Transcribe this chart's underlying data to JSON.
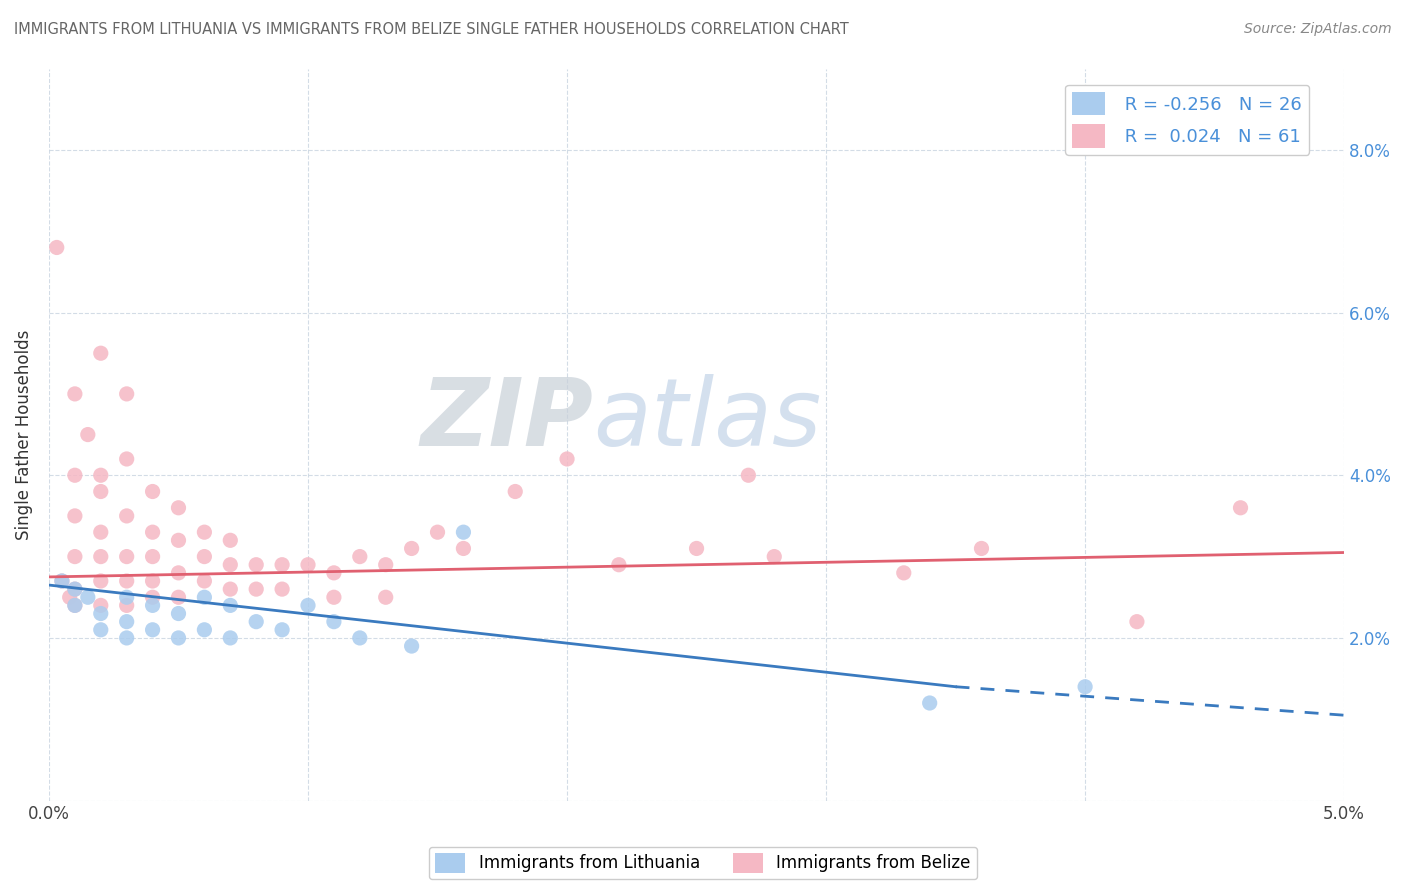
{
  "title": "IMMIGRANTS FROM LITHUANIA VS IMMIGRANTS FROM BELIZE SINGLE FATHER HOUSEHOLDS CORRELATION CHART",
  "source": "Source: ZipAtlas.com",
  "ylabel": "Single Father Households",
  "legend_labels": [
    "Immigrants from Lithuania",
    "Immigrants from Belize"
  ],
  "watermark_zip": "ZIP",
  "watermark_atlas": "atlas",
  "R_lithuania": -0.256,
  "N_lithuania": 26,
  "R_belize": 0.024,
  "N_belize": 61,
  "xlim": [
    0.0,
    0.05
  ],
  "ylim": [
    0.0,
    0.09
  ],
  "xtick_positions": [
    0.0,
    0.01,
    0.02,
    0.03,
    0.04,
    0.05
  ],
  "ytick_positions": [
    0.0,
    0.02,
    0.04,
    0.06,
    0.08
  ],
  "xticklabels": [
    "0.0%",
    "",
    "",
    "",
    "",
    "5.0%"
  ],
  "yticklabels_right": [
    "",
    "2.0%",
    "4.0%",
    "6.0%",
    "8.0%"
  ],
  "color_lithuania": "#aaccee",
  "color_belize": "#f5b8c4",
  "trendline_color_lithuania": "#3a7abf",
  "trendline_color_belize": "#e06070",
  "lithuania_scatter_x": [
    0.0005,
    0.001,
    0.001,
    0.0015,
    0.002,
    0.002,
    0.003,
    0.003,
    0.003,
    0.004,
    0.004,
    0.005,
    0.005,
    0.006,
    0.006,
    0.007,
    0.007,
    0.008,
    0.009,
    0.01,
    0.011,
    0.012,
    0.014,
    0.016,
    0.034,
    0.04
  ],
  "lithuania_scatter_y": [
    0.027,
    0.026,
    0.024,
    0.025,
    0.023,
    0.021,
    0.025,
    0.022,
    0.02,
    0.024,
    0.021,
    0.023,
    0.02,
    0.025,
    0.021,
    0.024,
    0.02,
    0.022,
    0.021,
    0.024,
    0.022,
    0.02,
    0.019,
    0.033,
    0.012,
    0.014
  ],
  "belize_scatter_x": [
    0.0003,
    0.0005,
    0.0008,
    0.001,
    0.001,
    0.001,
    0.001,
    0.001,
    0.001,
    0.0015,
    0.002,
    0.002,
    0.002,
    0.002,
    0.002,
    0.002,
    0.002,
    0.003,
    0.003,
    0.003,
    0.003,
    0.003,
    0.003,
    0.004,
    0.004,
    0.004,
    0.004,
    0.004,
    0.005,
    0.005,
    0.005,
    0.005,
    0.006,
    0.006,
    0.006,
    0.007,
    0.007,
    0.007,
    0.008,
    0.008,
    0.009,
    0.009,
    0.01,
    0.011,
    0.011,
    0.012,
    0.013,
    0.013,
    0.014,
    0.015,
    0.016,
    0.018,
    0.02,
    0.022,
    0.025,
    0.027,
    0.028,
    0.033,
    0.036,
    0.042,
    0.046
  ],
  "belize_scatter_y": [
    0.068,
    0.027,
    0.025,
    0.05,
    0.04,
    0.035,
    0.03,
    0.026,
    0.024,
    0.045,
    0.055,
    0.04,
    0.038,
    0.033,
    0.03,
    0.027,
    0.024,
    0.05,
    0.042,
    0.035,
    0.03,
    0.027,
    0.024,
    0.038,
    0.033,
    0.03,
    0.027,
    0.025,
    0.036,
    0.032,
    0.028,
    0.025,
    0.033,
    0.03,
    0.027,
    0.032,
    0.029,
    0.026,
    0.029,
    0.026,
    0.029,
    0.026,
    0.029,
    0.028,
    0.025,
    0.03,
    0.029,
    0.025,
    0.031,
    0.033,
    0.031,
    0.038,
    0.042,
    0.029,
    0.031,
    0.04,
    0.03,
    0.028,
    0.031,
    0.022,
    0.036
  ],
  "trendline_lith_x0": 0.0,
  "trendline_lith_y0": 0.0265,
  "trendline_lith_x1": 0.035,
  "trendline_lith_y1": 0.014,
  "trendline_lith_dash_x0": 0.035,
  "trendline_lith_dash_y0": 0.014,
  "trendline_lith_dash_x1": 0.05,
  "trendline_lith_dash_y1": 0.0105,
  "trendline_bel_x0": 0.0,
  "trendline_bel_y0": 0.0275,
  "trendline_bel_x1": 0.05,
  "trendline_bel_y1": 0.0305
}
